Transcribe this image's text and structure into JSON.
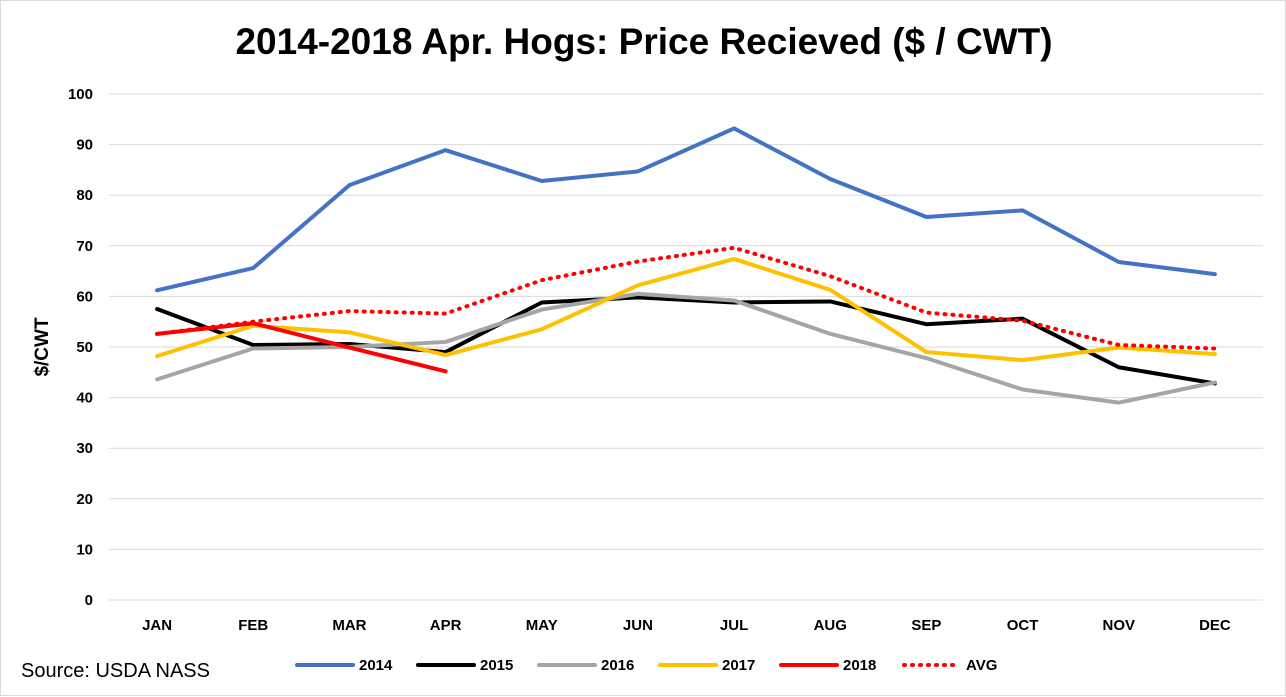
{
  "chart_data": {
    "type": "line",
    "title": "2014-2018 Apr. Hogs: Price Recieved ($ / CWT)",
    "ylabel": "$/CWT",
    "xlabel": "",
    "source": "Source: USDA NASS",
    "categories": [
      "JAN",
      "FEB",
      "MAR",
      "APR",
      "MAY",
      "JUN",
      "JUL",
      "AUG",
      "SEP",
      "OCT",
      "NOV",
      "DEC"
    ],
    "ylim": [
      0,
      100
    ],
    "yticks": [
      0,
      10,
      20,
      30,
      40,
      50,
      60,
      70,
      80,
      90,
      100
    ],
    "grid": true,
    "legend_position": "bottom",
    "series": [
      {
        "name": "2014",
        "color": "#4472C4",
        "style": "solid",
        "values": [
          61.2,
          65.6,
          82.0,
          88.9,
          82.8,
          84.7,
          93.2,
          83.2,
          75.7,
          77.0,
          66.8,
          64.4
        ]
      },
      {
        "name": "2015",
        "color": "#000000",
        "style": "solid",
        "values": [
          57.5,
          50.4,
          50.6,
          49.0,
          58.8,
          59.8,
          58.8,
          59.0,
          54.5,
          55.6,
          46.0,
          42.8
        ]
      },
      {
        "name": "2016",
        "color": "#A5A5A5",
        "style": "solid",
        "values": [
          43.6,
          49.7,
          50.0,
          51.0,
          57.4,
          60.5,
          59.2,
          52.6,
          47.8,
          41.6,
          39.0,
          43.0
        ]
      },
      {
        "name": "2017",
        "color": "#FFC000",
        "style": "solid",
        "values": [
          48.2,
          54.2,
          52.9,
          48.4,
          53.5,
          62.2,
          67.4,
          61.3,
          49.0,
          47.4,
          49.9,
          48.6
        ]
      },
      {
        "name": "2018",
        "color": "#FF0000",
        "style": "solid",
        "values": [
          52.6,
          54.7,
          49.9,
          45.2,
          null,
          null,
          null,
          null,
          null,
          null,
          null,
          null
        ]
      },
      {
        "name": "AVG",
        "color": "#FF0000",
        "style": "dotted",
        "values": [
          52.6,
          55.0,
          57.1,
          56.6,
          63.2,
          66.9,
          69.6,
          64.0,
          56.8,
          55.2,
          50.4,
          49.7
        ]
      }
    ]
  }
}
